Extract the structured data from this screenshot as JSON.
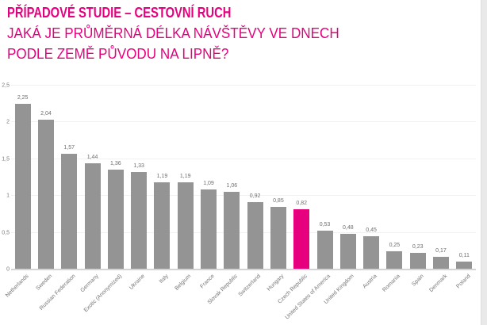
{
  "title": {
    "line1": "PŘÍPADOVÉ STUDIE – CESTOVNÍ RUCH",
    "line2": "JAKÁ JE PRŮMĚRNÁ DÉLKA NÁVŠTĚVY VE DNECH",
    "line3": "PODLE ZEMĚ PŮVODU NA LIPNĚ?"
  },
  "colors": {
    "accent": "#e6007e",
    "bar_gray": "#949494",
    "grid": "#f1f1f1",
    "axis_line": "#d4d4d4",
    "label_gray": "#6e6e6e",
    "edge_strip": "#e9e9e9"
  },
  "chart_data": {
    "type": "bar",
    "title": "",
    "xlabel": "",
    "ylabel": "",
    "categories": [
      "Netherlands",
      "Sweden",
      "Russian Federation",
      "Germany",
      "Exotic (Anonymized)",
      "Ukraine",
      "Italy",
      "Belgium",
      "France",
      "Slovak Republic",
      "Switzerland",
      "Hungary",
      "Czech Republic",
      "United States of America",
      "United Kingdom",
      "Austria",
      "Romania",
      "Spain",
      "Denmark",
      "Poland"
    ],
    "values": [
      2.25,
      2.04,
      1.57,
      1.44,
      1.36,
      1.33,
      1.19,
      1.19,
      1.09,
      1.06,
      0.92,
      0.85,
      0.82,
      0.53,
      0.48,
      0.45,
      0.25,
      0.23,
      0.17,
      0.11
    ],
    "value_labels": [
      "2,25",
      "2,04",
      "1,57",
      "1,44",
      "1,36",
      "1,33",
      "1,19",
      "1,19",
      "1,09",
      "1,06",
      "0,92",
      "0,85",
      "0,82",
      "0,53",
      "0,48",
      "0,45",
      "0,25",
      "0,23",
      "0,17",
      "0,11"
    ],
    "highlight_index": 12,
    "highlight_category": "Czech Republic",
    "ylim": [
      0,
      2.5
    ],
    "ytick_labels": [
      "0",
      "0,5",
      "1",
      "1,5",
      "2",
      "2,5"
    ],
    "grid": true,
    "legend": false
  }
}
